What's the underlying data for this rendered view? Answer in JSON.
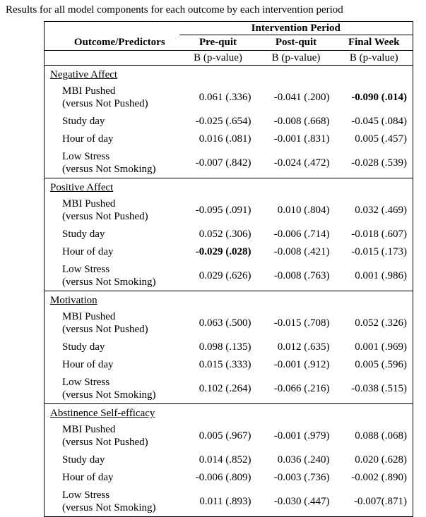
{
  "title": "Results for all model components for each outcome by each intervention period",
  "colors": {
    "text": "#000000",
    "background": "#ffffff",
    "border": "#000000"
  },
  "table": {
    "span_header": "Intervention Period",
    "outcome_header": "Outcome/Predictors",
    "period_headers": [
      "Pre-quit",
      "Post-quit",
      "Final Week"
    ],
    "stat_subheaders": [
      "B (p-value)",
      "B (p-value)",
      "B (p-value)"
    ],
    "sections": [
      {
        "outcome": "Negative Affect",
        "rows": [
          {
            "predictor": [
              "MBI Pushed",
              "(versus Not Pushed)"
            ],
            "values": [
              "0.061 (.336)",
              "-0.041 (.200)",
              "-0.090 (.014)"
            ],
            "bold": [
              false,
              false,
              true
            ]
          },
          {
            "predictor": [
              "Study day"
            ],
            "values": [
              "-0.025 (.654)",
              "-0.008 (.668)",
              "-0.045 (.084)"
            ],
            "bold": [
              false,
              false,
              false
            ]
          },
          {
            "predictor": [
              "Hour of day"
            ],
            "values": [
              "0.016 (.081)",
              "-0.001 (.831)",
              "0.005 (.457)"
            ],
            "bold": [
              false,
              false,
              false
            ]
          },
          {
            "predictor": [
              "Low Stress",
              "(versus Not Smoking)"
            ],
            "values": [
              "-0.007 (.842)",
              "-0.024 (.472)",
              "-0.028 (.539)"
            ],
            "bold": [
              false,
              false,
              false
            ]
          }
        ]
      },
      {
        "outcome": "Positive Affect",
        "rows": [
          {
            "predictor": [
              "MBI Pushed",
              "(versus Not Pushed)"
            ],
            "values": [
              "-0.095 (.091)",
              "0.010 (.804)",
              "0.032 (.469)"
            ],
            "bold": [
              false,
              false,
              false
            ]
          },
          {
            "predictor": [
              "Study day"
            ],
            "values": [
              "0.052 (.306)",
              "-0.006 (.714)",
              "-0.018 (.607)"
            ],
            "bold": [
              false,
              false,
              false
            ]
          },
          {
            "predictor": [
              "Hour of day"
            ],
            "values": [
              "-0.029 (.028)",
              "-0.008 (.421)",
              "-0.015 (.173)"
            ],
            "bold": [
              true,
              false,
              false
            ]
          },
          {
            "predictor": [
              "Low Stress",
              "(versus Not Smoking)"
            ],
            "values": [
              "0.029 (.626)",
              "-0.008 (.763)",
              "0.001 (.986)"
            ],
            "bold": [
              false,
              false,
              false
            ]
          }
        ]
      },
      {
        "outcome": "Motivation",
        "rows": [
          {
            "predictor": [
              "MBI Pushed",
              "(versus Not Pushed)"
            ],
            "values": [
              "0.063 (.500)",
              "-0.015 (.708)",
              "0.052 (.326)"
            ],
            "bold": [
              false,
              false,
              false
            ]
          },
          {
            "predictor": [
              "Study day"
            ],
            "values": [
              "0.098 (.135)",
              "0.012 (.635)",
              "0.001 (.969)"
            ],
            "bold": [
              false,
              false,
              false
            ]
          },
          {
            "predictor": [
              "Hour of day"
            ],
            "values": [
              "0.015 (.333)",
              "-0.001 (.912)",
              "0.005 (.596)"
            ],
            "bold": [
              false,
              false,
              false
            ]
          },
          {
            "predictor": [
              "Low Stress",
              "(versus Not Smoking)"
            ],
            "values": [
              "0.102 (.264)",
              "-0.066 (.216)",
              "-0.038 (.515)"
            ],
            "bold": [
              false,
              false,
              false
            ]
          }
        ]
      },
      {
        "outcome": "Abstinence Self-efficacy",
        "rows": [
          {
            "predictor": [
              "MBI Pushed",
              "(versus Not Pushed)"
            ],
            "values": [
              "0.005 (.967)",
              "-0.001 (.979)",
              "0.088 (.068)"
            ],
            "bold": [
              false,
              false,
              false
            ]
          },
          {
            "predictor": [
              "Study day"
            ],
            "values": [
              "0.014 (.852)",
              "0.036 (.240)",
              "0.020 (.628)"
            ],
            "bold": [
              false,
              false,
              false
            ]
          },
          {
            "predictor": [
              "Hour of day"
            ],
            "values": [
              "-0.006 (.809)",
              "-0.003 (.736)",
              "-0.002 (.890)"
            ],
            "bold": [
              false,
              false,
              false
            ]
          },
          {
            "predictor": [
              "Low Stress",
              "(versus Not Smoking)"
            ],
            "values": [
              "0.011 (.893)",
              "-0.030 (.447)",
              "-0.007(.871)"
            ],
            "bold": [
              false,
              false,
              false
            ]
          }
        ]
      }
    ]
  }
}
